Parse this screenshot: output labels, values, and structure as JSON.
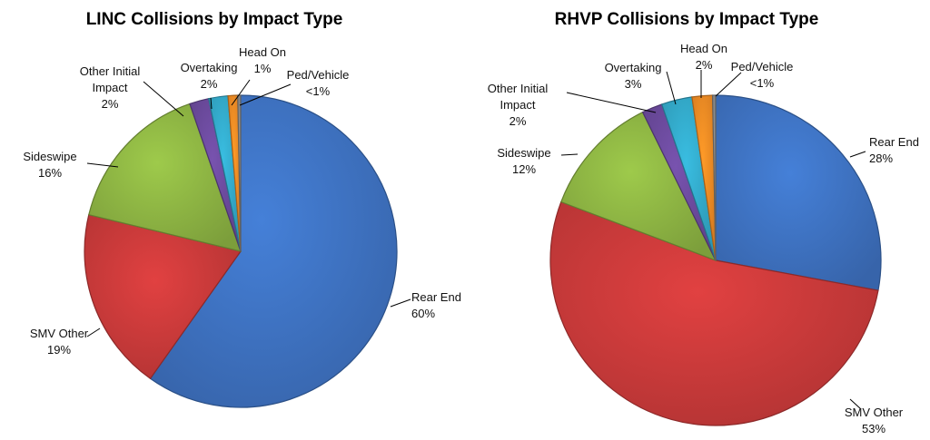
{
  "chart_data": [
    {
      "type": "pie",
      "title": "LINC Collisions by Impact Type",
      "slices": [
        {
          "name": "Rear End",
          "value": 60,
          "label": "60%",
          "color": "#3E72C1"
        },
        {
          "name": "SMV Other",
          "value": 19,
          "label": "19%",
          "color": "#C93A3A"
        },
        {
          "name": "Sideswipe",
          "value": 16,
          "label": "16%",
          "color": "#8DB443"
        },
        {
          "name": "Other Initial Impact",
          "value": 2,
          "label": "2%",
          "color": "#6B4A9C"
        },
        {
          "name": "Overtaking",
          "value": 2,
          "label": "2%",
          "color": "#33A9C9"
        },
        {
          "name": "Head On",
          "value": 1,
          "label": "1%",
          "color": "#F08A24"
        },
        {
          "name": "Ped/Vehicle",
          "value": 0.3,
          "label": "<1%",
          "color": "#8A8A8A"
        }
      ]
    },
    {
      "type": "pie",
      "title": "RHVP Collisions by Impact Type",
      "slices": [
        {
          "name": "Rear End",
          "value": 28,
          "label": "28%",
          "color": "#3E72C1"
        },
        {
          "name": "SMV Other",
          "value": 53,
          "label": "53%",
          "color": "#C93A3A"
        },
        {
          "name": "Sideswipe",
          "value": 12,
          "label": "12%",
          "color": "#8DB443"
        },
        {
          "name": "Other Initial Impact",
          "value": 2,
          "label": "2%",
          "color": "#6B4A9C"
        },
        {
          "name": "Overtaking",
          "value": 3,
          "label": "3%",
          "color": "#33A9C9"
        },
        {
          "name": "Head On",
          "value": 2,
          "label": "2%",
          "color": "#F08A24"
        },
        {
          "name": "Ped/Vehicle",
          "value": 0.3,
          "label": "<1%",
          "color": "#8A8A8A"
        }
      ]
    }
  ]
}
